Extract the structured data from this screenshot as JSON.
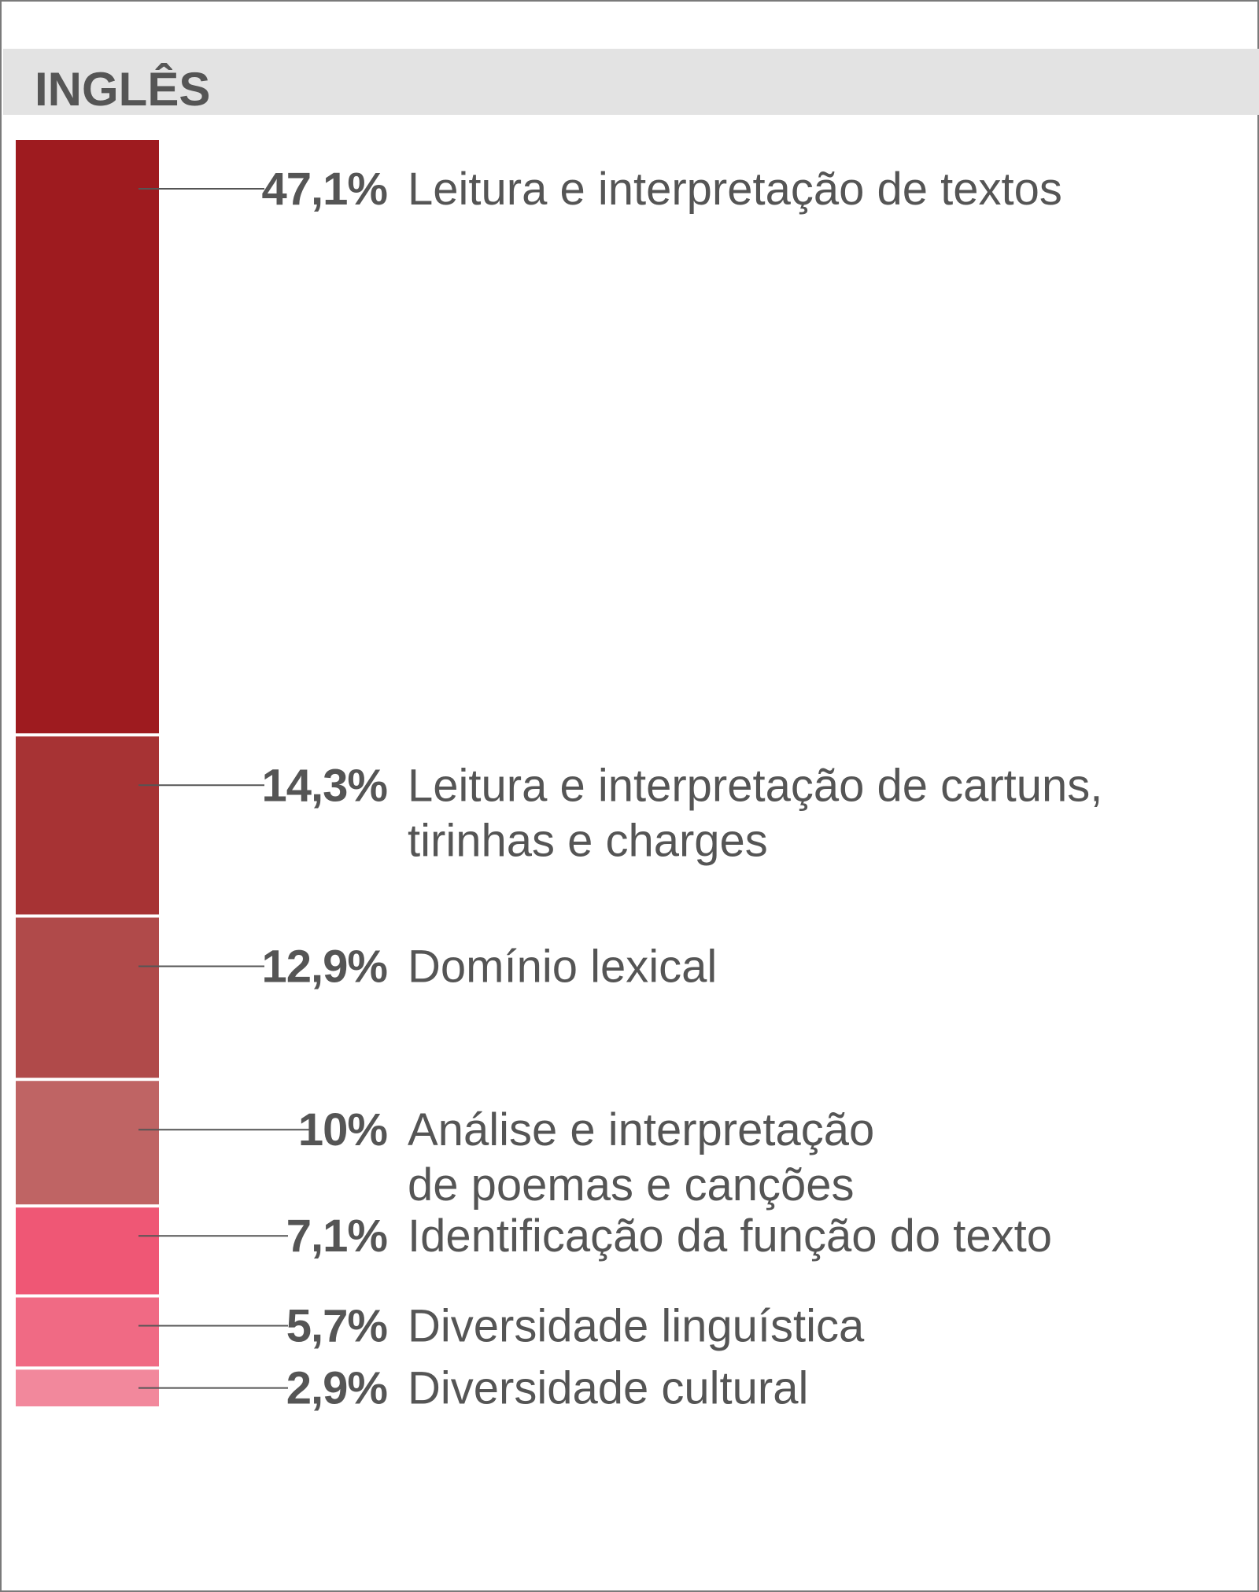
{
  "header": {
    "title": "INGLÊS"
  },
  "chart_data": {
    "type": "bar",
    "stacked": true,
    "orientation": "vertical",
    "unit": "%",
    "categories": [
      [
        "Leitura e interpretação de textos"
      ],
      [
        "Leitura e interpretação de cartuns,",
        "tirinhas e charges"
      ],
      [
        "Domínio lexical"
      ],
      [
        "Análise e interpretação",
        "de poemas e canções"
      ],
      [
        "Identificação da função do texto"
      ],
      [
        "Diversidade linguística"
      ],
      [
        "Diversidade cultural"
      ]
    ],
    "values": [
      47.1,
      14.3,
      12.9,
      10,
      7.1,
      5.7,
      2.9
    ],
    "value_labels": [
      "47,1%",
      "14,3%",
      "12,9%",
      "10%",
      "7,1%",
      "5,7%",
      "2,9%"
    ],
    "colors": [
      "#9e1b1f",
      "#a73334",
      "#b04a4a",
      "#bf6464",
      "#ef5775",
      "#f06a84",
      "#f2889c"
    ],
    "legend": "none",
    "grid": false
  }
}
